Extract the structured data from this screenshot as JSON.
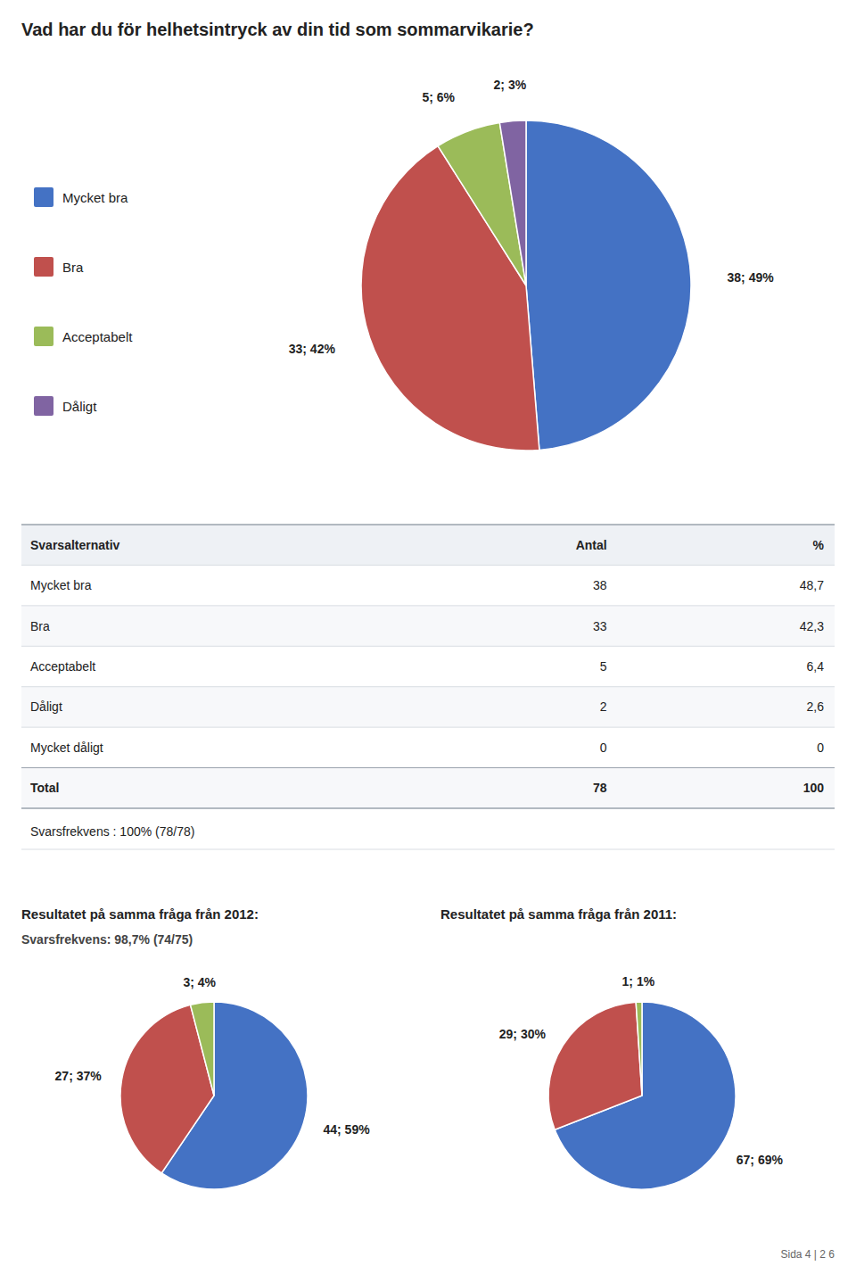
{
  "chart_data": [
    {
      "type": "pie",
      "title": "Vad har du för helhetsintryck av din tid som sommarvikarie?",
      "categories": [
        "Mycket bra",
        "Bra",
        "Acceptabelt",
        "Dåligt"
      ],
      "values": [
        38,
        33,
        5,
        2
      ],
      "value_labels": [
        "38; 49%",
        "33; 42%",
        "5; 6%",
        "2; 3%"
      ],
      "colors": [
        "#4472C4",
        "#C0504D",
        "#9BBB59",
        "#8064A2"
      ],
      "data_labels": true,
      "legend": "left"
    },
    {
      "type": "table",
      "xlabel": "Svarsalternativ",
      "categories": [
        "Mycket bra",
        "Bra",
        "Acceptabelt",
        "Dåligt",
        "Mycket dåligt",
        "Total"
      ],
      "series": [
        {
          "name": "Antal",
          "values": [
            38,
            33,
            5,
            2,
            0,
            78
          ]
        },
        {
          "name": "%",
          "values": [
            48.7,
            42.3,
            6.4,
            2.6,
            0,
            100
          ],
          "value_labels": [
            "48,7",
            "42,3",
            "6,4",
            "2,6",
            "0",
            "100"
          ]
        }
      ],
      "annotations": [
        "Svarsfrekvens : 100% (78/78)"
      ]
    },
    {
      "type": "pie",
      "title": "Resultatet på samma fråga från 2012:",
      "subtitle": "Svarsfrekvens: 98,7% (74/75)",
      "values": [
        44,
        27,
        3
      ],
      "value_labels": [
        "44; 59%",
        "27; 37%",
        "3; 4%"
      ],
      "colors": [
        "#4472C4",
        "#C0504D",
        "#9BBB59"
      ],
      "data_labels": true
    },
    {
      "type": "pie",
      "title": "Resultatet på samma fråga från 2011:",
      "values": [
        67,
        29,
        1
      ],
      "value_labels": [
        "67; 69%",
        "29; 30%",
        "1; 1%"
      ],
      "colors": [
        "#4472C4",
        "#C0504D",
        "#9BBB59"
      ],
      "data_labels": true,
      "annotations": [
        "Sida 4 | 2 6"
      ]
    }
  ]
}
